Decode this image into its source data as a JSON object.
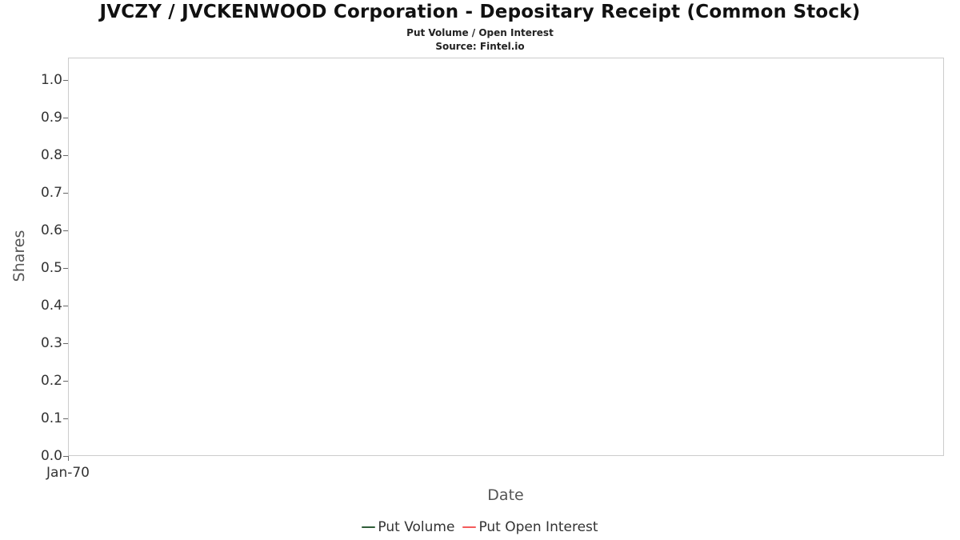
{
  "header": {
    "title": "JVCZY / JVCKENWOOD Corporation - Depositary Receipt (Common Stock)",
    "subtitle": "Put Volume / Open Interest",
    "source": "Source: Fintel.io"
  },
  "chart_data": {
    "type": "line",
    "title": "JVCZY / JVCKENWOOD Corporation - Depositary Receipt (Common Stock)",
    "subtitle": "Put Volume / Open Interest",
    "source": "Source: Fintel.io",
    "xlabel": "Date",
    "ylabel": "Shares",
    "ylim": [
      0.0,
      1.0
    ],
    "ytick_labels": [
      "1.0",
      "0.9",
      "0.8",
      "0.7",
      "0.6",
      "0.5",
      "0.4",
      "0.3",
      "0.2",
      "0.1",
      "0.0"
    ],
    "xtick_labels": [
      "Jan-70"
    ],
    "grid": false,
    "legend_position": "bottom",
    "series": [
      {
        "name": "Put Volume",
        "color": "#2f5d38",
        "x": [],
        "values": []
      },
      {
        "name": "Put Open Interest",
        "color": "#f45b5b",
        "x": [],
        "values": []
      }
    ]
  },
  "legend": {
    "items": [
      {
        "label": "Put Volume",
        "color": "#2f5d38"
      },
      {
        "label": "Put Open Interest",
        "color": "#f45b5b"
      }
    ]
  }
}
